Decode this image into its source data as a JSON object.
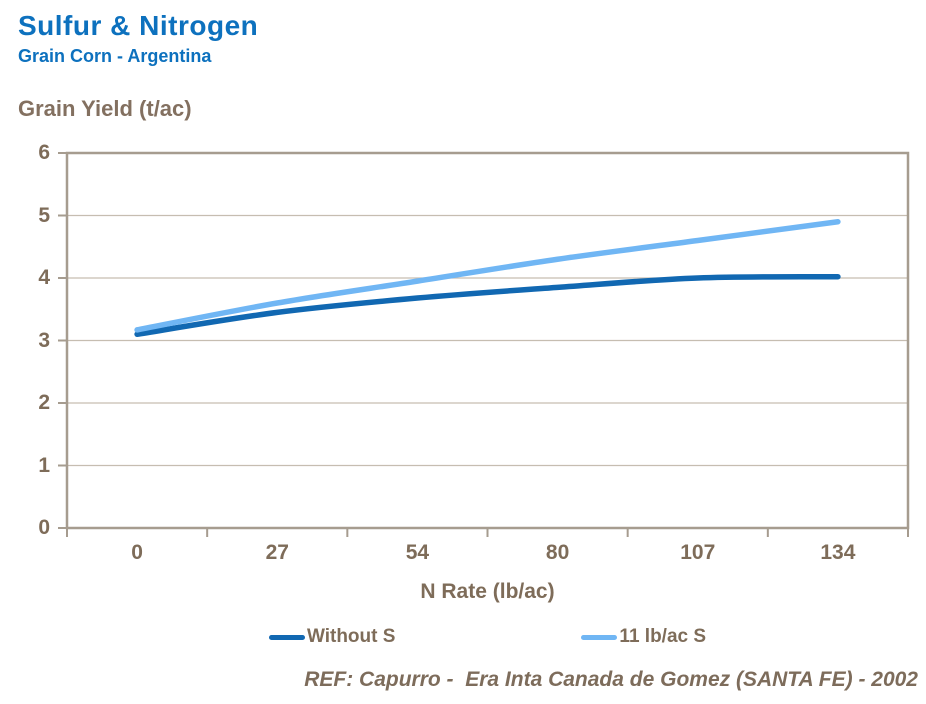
{
  "header": {
    "title": "Sulfur & Nitrogen",
    "subtitle": "Grain Corn - Argentina"
  },
  "footer": {
    "reference": "REF: Capurro -  Era Inta Canada de Gomez (SANTA FE) - 2002"
  },
  "colors": {
    "title_blue": "#0D71BE",
    "label_brown": "#7E6C59",
    "plot_border": "#A69C8F",
    "gridline": "#C6BDB1",
    "series_without_s": "#1168B2",
    "series_with_s": "#70B6F4"
  },
  "chart_data": {
    "type": "line",
    "title": "Sulfur & Nitrogen — Grain Corn - Argentina",
    "xlabel": "N Rate (lb/ac)",
    "ylabel": "Grain Yield (t/ac)",
    "categories": [
      "0",
      "27",
      "54",
      "80",
      "107",
      "134"
    ],
    "series": [
      {
        "name": "Without S",
        "color": "#1168B2",
        "values": [
          3.1,
          3.45,
          3.68,
          3.85,
          4.0,
          4.02
        ]
      },
      {
        "name": "11 lb/ac S",
        "color": "#70B6F4",
        "values": [
          3.17,
          3.6,
          3.95,
          4.3,
          4.6,
          4.9
        ]
      }
    ],
    "ylim": [
      0,
      6
    ],
    "yticks": [
      0,
      1,
      2,
      3,
      4,
      5,
      6
    ],
    "grid": true,
    "legend_position": "bottom"
  }
}
